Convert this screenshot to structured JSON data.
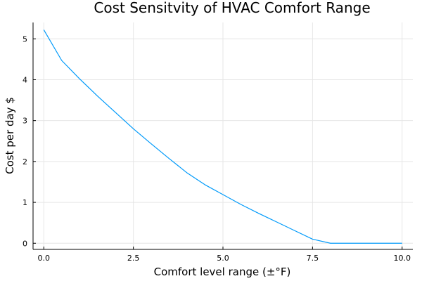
{
  "chart_data": {
    "type": "line",
    "title": "Cost Sensitvity of HVAC Comfort Range",
    "xlabel": "Comfort level range (±°F)",
    "ylabel": "Cost per day $",
    "xlim": [
      -0.3,
      10.3
    ],
    "ylim": [
      -0.15,
      5.4
    ],
    "x_ticks": [
      0,
      2.5,
      5,
      7.5,
      10
    ],
    "x_tick_labels": [
      "0.0",
      "2.5",
      "5.0",
      "7.5",
      "10.0"
    ],
    "y_ticks": [
      0,
      1,
      2,
      3,
      4,
      5
    ],
    "y_tick_labels": [
      "0",
      "1",
      "2",
      "3",
      "4",
      "5"
    ],
    "grid": true,
    "legend": "none",
    "series": [
      {
        "color": "#009AFA",
        "x": [
          0,
          0.5,
          1,
          1.5,
          2,
          2.5,
          3,
          3.5,
          4,
          4.5,
          5,
          5.5,
          6,
          6.5,
          7,
          7.5,
          8,
          8.5,
          9,
          9.5,
          10
        ],
        "y": [
          5.22,
          4.47,
          4.02,
          3.6,
          3.2,
          2.8,
          2.43,
          2.07,
          1.72,
          1.43,
          1.19,
          0.95,
          0.73,
          0.52,
          0.31,
          0.1,
          0.0,
          0.0,
          0.0,
          0.0,
          0.0
        ]
      }
    ]
  }
}
